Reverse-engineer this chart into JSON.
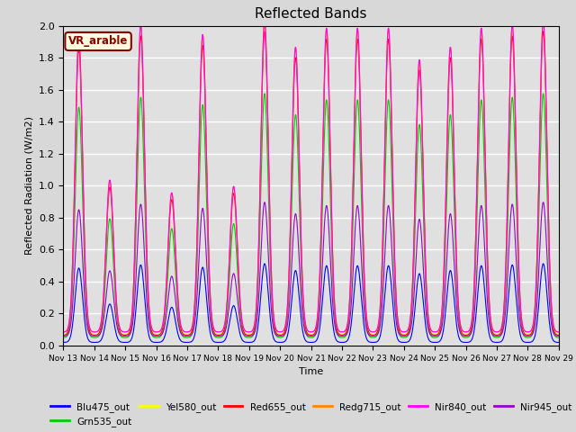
{
  "title": "Reflected Bands",
  "xlabel": "Time",
  "ylabel": "Reflected Radiation (W/m2)",
  "ylim": [
    0.0,
    2.0
  ],
  "yticks": [
    0.0,
    0.2,
    0.4,
    0.6,
    0.8,
    1.0,
    1.2,
    1.4,
    1.6,
    1.8,
    2.0
  ],
  "annotation": "VR_arable",
  "series": [
    {
      "name": "Blu475_out",
      "color": "#0000ff"
    },
    {
      "name": "Grn535_out",
      "color": "#00cc00"
    },
    {
      "name": "Yel580_out",
      "color": "#ffff00"
    },
    {
      "name": "Red655_out",
      "color": "#ff0000"
    },
    {
      "name": "Redg715_out",
      "color": "#ff8800"
    },
    {
      "name": "Nir840_out",
      "color": "#ff00ff"
    },
    {
      "name": "Nir945_out",
      "color": "#9900cc"
    }
  ],
  "n_days": 16,
  "start_day": 13,
  "points_per_day": 144,
  "background_color": "#e0e0e0",
  "grid_color": "#ffffff",
  "grid_linewidth": 1.0
}
